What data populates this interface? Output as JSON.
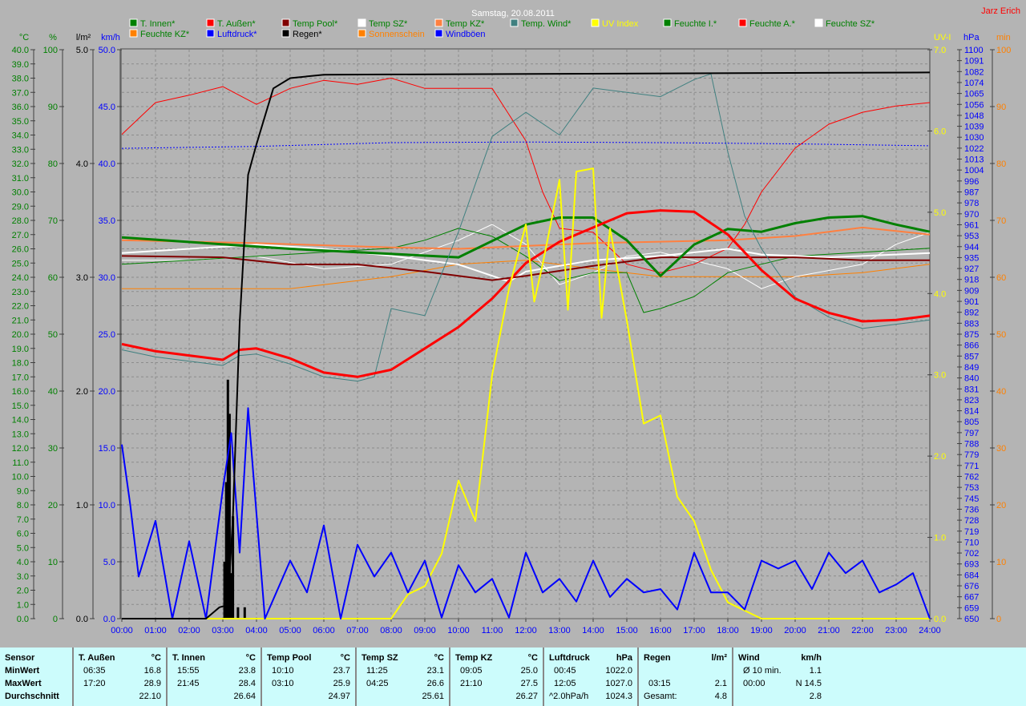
{
  "title": "Samstag, 20.08.2011",
  "author": "Jarz Erich",
  "legend": [
    {
      "label": "T. Innen*",
      "color": "#008000",
      "text_color": "#008000"
    },
    {
      "label": "T. Außen*",
      "color": "#ff0000",
      "text_color": "#008000"
    },
    {
      "label": "Temp Pool*",
      "color": "#800000",
      "text_color": "#008000"
    },
    {
      "label": "Temp SZ*",
      "color": "#ffffff",
      "text_color": "#008000"
    },
    {
      "label": "Temp KZ*",
      "color": "#ff8040",
      "text_color": "#008000"
    },
    {
      "label": "Temp. Wind*",
      "color": "#408080",
      "text_color": "#008000"
    },
    {
      "label": "UV Index",
      "color": "#ffff00",
      "text_color": "#ffff00"
    },
    {
      "label": "Feuchte I.*",
      "color": "#008000",
      "text_color": "#008000"
    },
    {
      "label": "Feuchte A.*",
      "color": "#ff0000",
      "text_color": "#008000"
    },
    {
      "label": "Feuchte SZ*",
      "color": "#ffffff",
      "text_color": "#008000"
    },
    {
      "label": "Feuchte KZ*",
      "color": "#ff8000",
      "text_color": "#008000"
    },
    {
      "label": "Luftdruck*",
      "color": "#0000ff",
      "text_color": "#0000ff"
    },
    {
      "label": "Regen*",
      "color": "#000000",
      "text_color": "#000000"
    },
    {
      "label": "Sonnenschein",
      "color": "#ff8000",
      "text_color": "#ff8000"
    },
    {
      "label": "Windböen",
      "color": "#0000ff",
      "text_color": "#0000ff"
    }
  ],
  "chart_data": {
    "type": "line",
    "title": "Samstag, 20.08.2011",
    "x_unit": "hours",
    "xlim": [
      0,
      24
    ],
    "x_ticks": [
      "00:00",
      "01:00",
      "02:00",
      "03:00",
      "04:00",
      "05:00",
      "06:00",
      "07:00",
      "08:00",
      "09:00",
      "10:00",
      "11:00",
      "12:00",
      "13:00",
      "14:00",
      "15:00",
      "16:00",
      "17:00",
      "18:00",
      "19:00",
      "20:00",
      "21:00",
      "22:00",
      "23:00",
      "24:00"
    ],
    "grid": true,
    "legend_placement": "top",
    "axes": {
      "temp": {
        "label": "°C",
        "range": [
          0,
          40
        ],
        "color": "#008000",
        "side": "left"
      },
      "hum": {
        "label": "%",
        "range": [
          0,
          100
        ],
        "color": "#008000",
        "side": "left"
      },
      "rain": {
        "label": "l/m²",
        "range": [
          0,
          5
        ],
        "color": "#000000",
        "side": "left"
      },
      "wind": {
        "label": "km/h",
        "range": [
          0,
          50
        ],
        "color": "#0000ff",
        "side": "left"
      },
      "uv": {
        "label": "UV-I",
        "range": [
          0,
          7
        ],
        "color": "#ffff00",
        "side": "right"
      },
      "press": {
        "label": "hPa",
        "range": [
          650,
          1100
        ],
        "color": "#0000ff",
        "side": "right",
        "ticks": [
          "1100",
          "1091",
          "1082",
          "1074",
          "1065",
          "1056",
          "1048",
          "1039",
          "1030",
          "1022",
          "1013",
          "1004",
          "996",
          "987",
          "978",
          "970",
          "961",
          "953",
          "944",
          "935",
          "927",
          "918",
          "909",
          "901",
          "892",
          "883",
          "875",
          "866",
          "857",
          "849",
          "840",
          "831",
          "823",
          "814",
          "805",
          "797",
          "788",
          "779",
          "771",
          "762",
          "753",
          "745",
          "736",
          "728",
          "719",
          "710",
          "702",
          "693",
          "684",
          "676",
          "667",
          "659",
          "650"
        ]
      },
      "sun": {
        "label": "min",
        "range": [
          0,
          100
        ],
        "color": "#ff8000",
        "side": "right"
      }
    },
    "series": [
      {
        "name": "Feuchte KZ*",
        "axis": "hum",
        "color": "#ff8000",
        "width": 1,
        "x": [
          0,
          5,
          6,
          8,
          10,
          12,
          14,
          16,
          18,
          20,
          22,
          24
        ],
        "y": [
          58,
          58,
          58.7,
          60.1,
          62.3,
          63,
          61.5,
          60.1,
          60.1,
          60.1,
          60.8,
          62.3
        ]
      },
      {
        "name": "Feuchte SZ*",
        "axis": "hum",
        "color": "#ffffff",
        "width": 1,
        "x": [
          0,
          2,
          4,
          6,
          8,
          10,
          11,
          12,
          13,
          14,
          15,
          16,
          18,
          19,
          20,
          22,
          23,
          24
        ],
        "y": [
          63,
          63,
          63.7,
          61.5,
          62.3,
          66.5,
          69.3,
          65.8,
          58.7,
          60.8,
          63.7,
          64.4,
          61.5,
          58,
          60.1,
          62.3,
          65.8,
          67.9
        ]
      },
      {
        "name": "Feuchte I.*",
        "axis": "hum",
        "color": "#008000",
        "width": 1,
        "x": [
          0,
          2,
          4,
          6,
          8,
          9,
          10,
          11,
          12,
          13,
          14,
          15,
          15.5,
          16,
          17,
          18,
          19,
          20,
          22,
          24
        ],
        "y": [
          62.3,
          63,
          63.7,
          64.4,
          65.1,
          66.5,
          68.6,
          67.2,
          63.7,
          59.4,
          60.8,
          60.8,
          53.8,
          54.5,
          56.6,
          60.8,
          62.3,
          63.7,
          64.4,
          65.1
        ]
      },
      {
        "name": "Feuchte A.*",
        "axis": "hum",
        "color": "#ff0000",
        "width": 1,
        "x": [
          0,
          1,
          2,
          3,
          4,
          5,
          6,
          7,
          8,
          9,
          10,
          11,
          12,
          12.5,
          13,
          14,
          15,
          16,
          17,
          18,
          18.5,
          19,
          20,
          21,
          22,
          23,
          24
        ],
        "y": [
          85.1,
          90.7,
          92,
          93.5,
          90.4,
          93.2,
          94.6,
          93.9,
          95,
          93.2,
          93.2,
          93.2,
          84,
          75,
          68.6,
          67.9,
          62.3,
          60.8,
          62.3,
          65.1,
          69.3,
          75,
          82.7,
          86.9,
          89,
          90.1,
          90.7
        ]
      },
      {
        "name": "Temp KZ*",
        "axis": "temp",
        "color": "#ff8040",
        "width": 2,
        "x": [
          0,
          4,
          8,
          10,
          12,
          14,
          16,
          18,
          20,
          21,
          22,
          24
        ],
        "y": [
          26.6,
          26.4,
          26.1,
          26,
          26.2,
          26.4,
          26.5,
          26.6,
          26.9,
          27.2,
          27.5,
          27
        ]
      },
      {
        "name": "Temp SZ*",
        "axis": "temp",
        "color": "#ffffff",
        "width": 2,
        "x": [
          0,
          2,
          4,
          6,
          8,
          10,
          11,
          11.5,
          12,
          14,
          16,
          18,
          19,
          21,
          24
        ],
        "y": [
          25.7,
          26,
          26.3,
          26,
          25.5,
          24.9,
          24.1,
          23.7,
          24.4,
          25.2,
          25.5,
          26,
          25.6,
          25.4,
          25.7
        ]
      },
      {
        "name": "Temp Pool*",
        "axis": "temp",
        "color": "#800000",
        "width": 2,
        "x": [
          0,
          3,
          5,
          7,
          9,
          11,
          12,
          14,
          16,
          18,
          20,
          22,
          24
        ],
        "y": [
          25.5,
          25.4,
          24.9,
          24.9,
          24.4,
          23.8,
          24.1,
          24.8,
          25.4,
          25.4,
          25.4,
          25.2,
          25.2
        ]
      },
      {
        "name": "T. Innen*",
        "axis": "temp",
        "color": "#008000",
        "width": 3,
        "x": [
          0,
          5,
          10,
          12,
          13,
          14,
          15,
          16,
          17,
          18,
          19,
          20,
          21,
          22,
          23,
          24
        ],
        "y": [
          26.8,
          26,
          25.4,
          27.7,
          28.2,
          28.2,
          26.6,
          24.1,
          26.3,
          27.4,
          27.2,
          27.8,
          28.2,
          28.3,
          27.7,
          27.2
        ]
      },
      {
        "name": "Temp. Wind*",
        "axis": "temp",
        "color": "#408080",
        "width": 1,
        "x": [
          0,
          1,
          2,
          3,
          3.5,
          4,
          5,
          6,
          7,
          7.5,
          8,
          9,
          10,
          11,
          12,
          13,
          14,
          15,
          16,
          17,
          17.5,
          18,
          18.5,
          19,
          20,
          21,
          22,
          23,
          24
        ],
        "y": [
          18.9,
          18.4,
          18.1,
          17.8,
          18.5,
          18.6,
          17.9,
          17,
          16.7,
          17,
          21.8,
          21.3,
          27.2,
          33.9,
          35.6,
          34,
          37.3,
          37,
          36.7,
          37.9,
          38.3,
          32.8,
          28.3,
          26,
          22.6,
          21.2,
          20.4,
          20.7,
          21
        ]
      },
      {
        "name": "T. Außen*",
        "axis": "temp",
        "color": "#ff0000",
        "width": 3,
        "x": [
          0,
          1,
          2,
          3,
          3.5,
          4,
          5,
          6,
          7,
          8,
          9,
          10,
          11,
          12,
          13,
          14,
          15,
          16,
          17,
          18,
          19,
          20,
          21,
          22,
          23,
          24
        ],
        "y": [
          19.3,
          18.8,
          18.5,
          18.2,
          18.9,
          19,
          18.3,
          17.3,
          17,
          17.5,
          19,
          20.5,
          22.5,
          25,
          26.5,
          27.5,
          28.5,
          28.7,
          28.6,
          27,
          24.5,
          22.5,
          21.5,
          20.9,
          21,
          21.3
        ]
      },
      {
        "name": "Luftdruck*",
        "axis": "press",
        "color": "#0000ff",
        "width": 1,
        "dash": "2,2",
        "x": [
          0,
          4,
          8,
          12,
          16,
          20,
          24
        ],
        "y": [
          1022,
          1023.5,
          1026.5,
          1027,
          1026.5,
          1025.5,
          1024
        ]
      },
      {
        "name": "UV Index",
        "axis": "uv",
        "color": "#ffff00",
        "width": 2,
        "x": [
          0,
          8,
          8.5,
          9,
          9.5,
          10,
          10.5,
          11,
          11.5,
          12,
          12.25,
          12.5,
          13,
          13.25,
          13.5,
          14,
          14.25,
          14.5,
          15,
          15.5,
          16,
          16.5,
          17,
          17.5,
          18,
          18.5,
          19,
          24
        ],
        "y": [
          0,
          0,
          0.3,
          0.4,
          0.8,
          1.7,
          1.2,
          3,
          4.06,
          4.85,
          3.9,
          4.36,
          5.4,
          3.8,
          5.5,
          5.54,
          3.7,
          4.8,
          3.67,
          2.4,
          2.5,
          1.5,
          1.2,
          0.6,
          0.2,
          0.1,
          0,
          0
        ]
      },
      {
        "name": "Windböen",
        "axis": "wind",
        "color": "#0000ff",
        "width": 2,
        "x": [
          0,
          0.25,
          0.5,
          1,
          1.5,
          2,
          2.5,
          3,
          3.25,
          3.5,
          3.75,
          4,
          4.25,
          5,
          5.5,
          6,
          6.5,
          7,
          7.5,
          8,
          8.5,
          9,
          9.5,
          10,
          10.5,
          11,
          11.5,
          12,
          12.5,
          13,
          13.5,
          14,
          14.5,
          15,
          15.5,
          16,
          16.5,
          17,
          17.5,
          18,
          18.5,
          19,
          19.5,
          20,
          20.5,
          21,
          21.5,
          22,
          22.5,
          23,
          23.5,
          24
        ],
        "y": [
          15.3,
          10,
          3.7,
          8.6,
          0,
          6.8,
          0,
          11.4,
          16.3,
          5.8,
          18.5,
          9.2,
          0,
          5.1,
          2.3,
          8.2,
          0,
          6.5,
          3.7,
          5.8,
          2.3,
          5.1,
          0.1,
          4.7,
          2.3,
          3.5,
          0.1,
          5.8,
          2.3,
          3.5,
          1.5,
          5.1,
          1.9,
          3.5,
          2.3,
          2.6,
          0.8,
          5.8,
          2.3,
          2.3,
          0.8,
          5.1,
          4.4,
          5.1,
          2.6,
          5.8,
          4.0,
          5.1,
          2.3,
          3.0,
          4.0,
          0
        ]
      },
      {
        "name": "Regen*",
        "axis": "rain",
        "color": "#000000",
        "width": 2,
        "x": [
          0,
          2.5,
          2.9,
          3.15,
          3.3,
          3.5,
          3.75,
          4,
          4.5,
          5,
          6,
          24
        ],
        "y": [
          0,
          0,
          0.1,
          0.12,
          0.9,
          2.6,
          3.9,
          4.17,
          4.66,
          4.75,
          4.78,
          4.8
        ]
      }
    ],
    "rain_rate": {
      "axis": "rain",
      "color": "#000000",
      "x": [
        3.05,
        3.1,
        3.15,
        3.2,
        3.25,
        3.3,
        3.45,
        3.65
      ],
      "y": [
        0.5,
        1.2,
        2.1,
        1.8,
        0.4,
        0.9,
        0.1,
        0.1
      ]
    }
  },
  "table": {
    "columns": [
      {
        "head": "Sensor",
        "unit": "",
        "rows": [
          [
            "MinWert",
            ""
          ],
          [
            "MaxWert",
            ""
          ],
          [
            "Durchschnitt",
            ""
          ]
        ],
        "labels": true
      },
      {
        "head": "T. Außen",
        "unit": "°C",
        "rows": [
          [
            "06:35",
            "16.8"
          ],
          [
            "17:20",
            "28.9"
          ],
          [
            "",
            "22.10"
          ]
        ]
      },
      {
        "head": "T. Innen",
        "unit": "°C",
        "rows": [
          [
            "15:55",
            "23.8"
          ],
          [
            "21:45",
            "28.4"
          ],
          [
            "",
            "26.64"
          ]
        ]
      },
      {
        "head": "Temp Pool",
        "unit": "°C",
        "rows": [
          [
            "10:10",
            "23.7"
          ],
          [
            "03:10",
            "25.9"
          ],
          [
            "",
            "24.97"
          ]
        ]
      },
      {
        "head": "Temp SZ",
        "unit": "°C",
        "rows": [
          [
            "11:25",
            "23.1"
          ],
          [
            "04:25",
            "26.6"
          ],
          [
            "",
            "25.61"
          ]
        ]
      },
      {
        "head": "Temp KZ",
        "unit": "°C",
        "rows": [
          [
            "09:05",
            "25.0"
          ],
          [
            "21:10",
            "27.5"
          ],
          [
            "",
            "26.27"
          ]
        ]
      },
      {
        "head": "Luftdruck",
        "unit": "hPa",
        "rows": [
          [
            "00:45",
            "1022.0"
          ],
          [
            "12:05",
            "1027.0"
          ],
          [
            "^2.0hPa/h",
            "1024.3"
          ]
        ]
      },
      {
        "head": "Regen",
        "unit": "l/m²",
        "rows": [
          [
            "",
            ""
          ],
          [
            "03:15",
            "2.1"
          ],
          [
            "Gesamt:",
            "4.8"
          ]
        ]
      },
      {
        "head": "Wind",
        "unit": "km/h",
        "rows": [
          [
            "Ø 10 min.",
            "1.1"
          ],
          [
            "00:00",
            "N 14.5"
          ],
          [
            "",
            "2.8"
          ]
        ]
      }
    ]
  }
}
